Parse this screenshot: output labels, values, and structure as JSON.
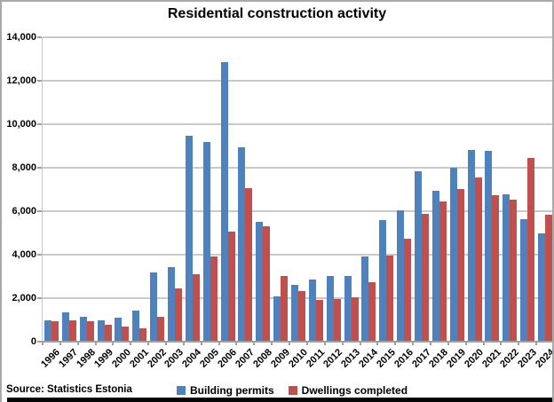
{
  "title": "Residential construction activity",
  "source_note": "Source: Statistics Estonia",
  "colors": {
    "permits_blue": "#4f81bd",
    "completed_red": "#c0504d",
    "gridline": "#c9c9c9",
    "axis": "#a0a0a0",
    "outer_border": "#a9a9a9",
    "bottom_bar": "#050505"
  },
  "legend": [
    {
      "label": "Building permits",
      "color": "#4f81bd"
    },
    {
      "label": "Dwellings completed",
      "color": "#c0504d"
    }
  ],
  "y_axis": {
    "tick_labels": [
      "14,000",
      "12,000",
      "10,000",
      "8,000",
      "6,000",
      "4,000",
      "2,000",
      "0"
    ],
    "max": 14000,
    "min": 0,
    "step": 2000
  },
  "chart_data": {
    "type": "bar",
    "title": "Residential construction activity",
    "categories": [
      "1996",
      "1997",
      "1998",
      "1999",
      "2000",
      "2001",
      "2002",
      "2003",
      "2004",
      "2005",
      "2006",
      "2007",
      "2008",
      "2009",
      "2010",
      "2011",
      "2012",
      "2013",
      "2014",
      "2015",
      "2016",
      "2017",
      "2018",
      "2019",
      "2020",
      "2021",
      "2022",
      "2023",
      "2024"
    ],
    "series": [
      {
        "name": "Building permits",
        "color": "#4f81bd",
        "values": [
          1000,
          1330,
          1150,
          980,
          1090,
          1430,
          3180,
          3430,
          9450,
          9180,
          12860,
          8930,
          5500,
          2080,
          2600,
          2840,
          3030,
          3040,
          3930,
          5610,
          6030,
          7850,
          6950,
          7990,
          8800,
          8770,
          6780,
          5630,
          4990
        ]
      },
      {
        "name": "Dwellings completed",
        "color": "#c0504d",
        "values": [
          920,
          1000,
          920,
          770,
          690,
          610,
          1130,
          2450,
          3110,
          3910,
          5060,
          7060,
          5320,
          3010,
          2320,
          1910,
          1980,
          2060,
          2750,
          3970,
          4730,
          5860,
          6430,
          7030,
          7570,
          6720,
          6520,
          8450,
          5830
        ]
      }
    ],
    "ylim": [
      0,
      14000
    ],
    "y_tick_step": 2000,
    "grid": true,
    "legend_position": "bottom",
    "xlabel": "",
    "ylabel": ""
  }
}
